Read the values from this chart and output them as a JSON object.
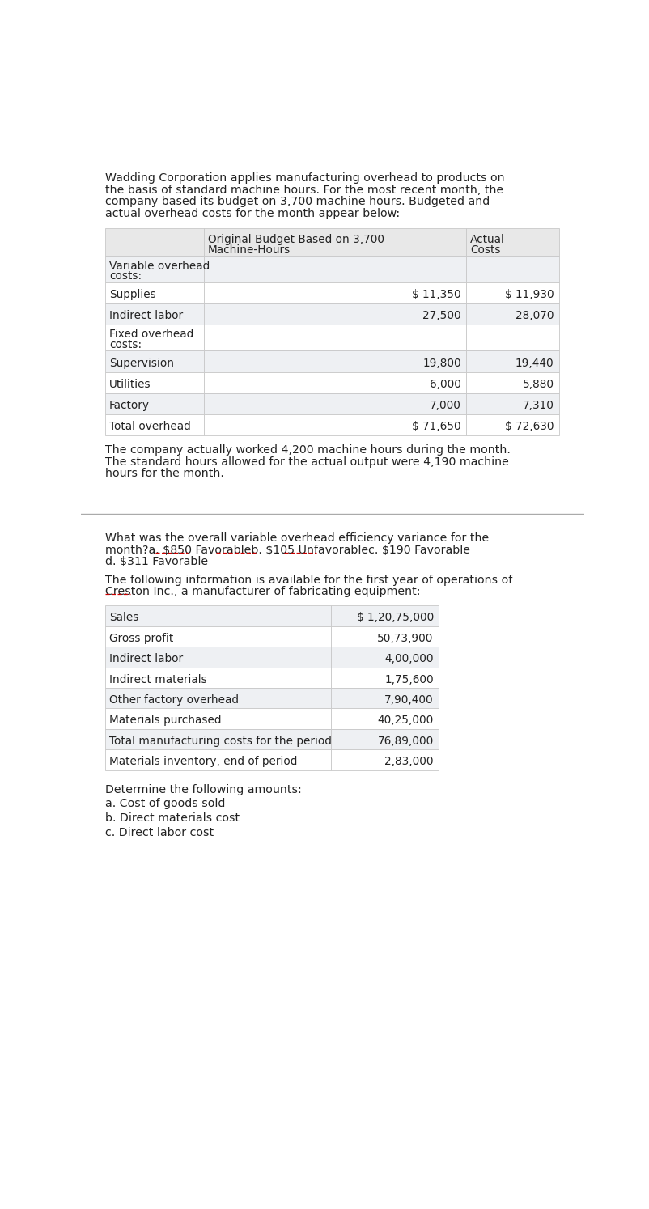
{
  "bg_color": "#ffffff",
  "text_color": "#333333",
  "table_header_bg": "#e8e8e8",
  "table_row_alt": "#eef0f3",
  "table_row_white": "#ffffff",
  "table_border": "#c8c8c8",
  "para1": "Wadding Corporation applies manufacturing overhead to products on\nthe basis of standard machine hours. For the most recent month, the\ncompany based its budget on 3,700 machine hours. Budgeted and\nactual overhead costs for the month appear below:",
  "table1_rows": [
    [
      "Variable overhead\ncosts:",
      "",
      "",
      true
    ],
    [
      "Supplies",
      "$ 11,350",
      "$ 11,930",
      false
    ],
    [
      "Indirect labor",
      "27,500",
      "28,070",
      false
    ],
    [
      "Fixed overhead\ncosts:",
      "",
      "",
      true
    ],
    [
      "Supervision",
      "19,800",
      "19,440",
      false
    ],
    [
      "Utilities",
      "6,000",
      "5,880",
      false
    ],
    [
      "Factory",
      "7,000",
      "7,310",
      false
    ],
    [
      "Total overhead",
      "$ 71,650",
      "$ 72,630",
      false
    ]
  ],
  "para2": "The company actually worked 4,200 machine hours during the month.\nThe standard hours allowed for the actual output were 4,190 machine\nhours for the month.",
  "para3_line1": "What was the overall variable overhead efficiency variance for the",
  "para3_line2": "month?a. $850 Favorableb. $105 Unfavorablec. $190 Favorable",
  "para3_line3": "d. $311 Favorable",
  "para4_line1": "The following information is available for the first year of operations of",
  "para4_line2": "Creston Inc., a manufacturer of fabricating equipment:",
  "table2_rows": [
    [
      "Sales",
      "$ 1,20,75,000"
    ],
    [
      "Gross profit",
      "50,73,900"
    ],
    [
      "Indirect labor",
      "4,00,000"
    ],
    [
      "Indirect materials",
      "1,75,600"
    ],
    [
      "Other factory overhead",
      "7,90,400"
    ],
    [
      "Materials purchased",
      "40,25,000"
    ],
    [
      "Total manufacturing costs for the period",
      "76,89,000"
    ],
    [
      "Materials inventory, end of period",
      "2,83,000"
    ]
  ],
  "para5": "Determine the following amounts:",
  "para6a": "a. Cost of goods sold",
  "para6b": "b. Direct materials cost",
  "para6c": "c. Direct labor cost",
  "fs_body": 10.2,
  "fs_table": 9.8
}
